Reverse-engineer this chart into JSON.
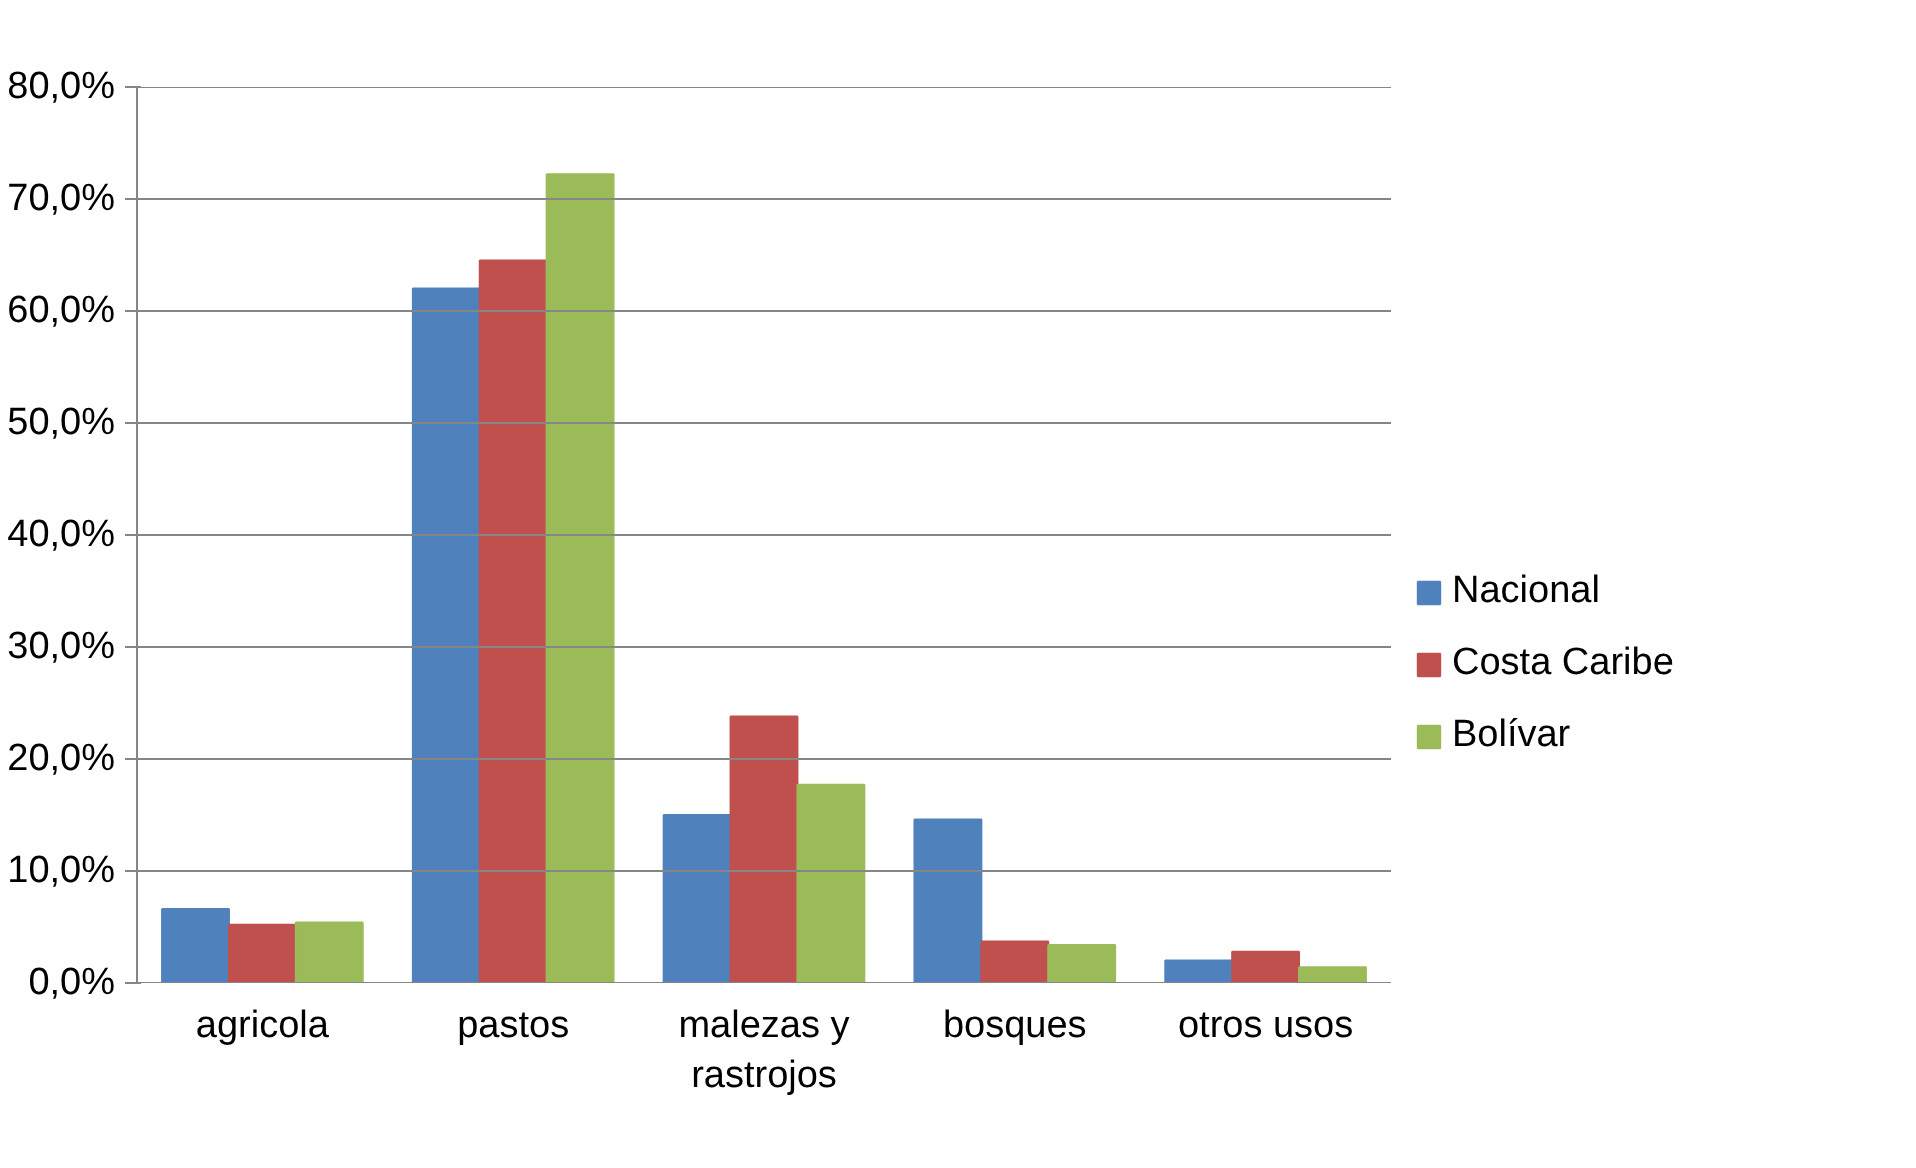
{
  "chart_data": {
    "type": "bar",
    "categories": [
      "agricola",
      "pastos",
      "malezas y\nrastrojos",
      "bosques",
      "otros usos"
    ],
    "series": [
      {
        "name": "Nacional",
        "color": "#4f81bd",
        "values": [
          6.6,
          62.0,
          15.0,
          14.6,
          2.0
        ]
      },
      {
        "name": "Costa Caribe",
        "color": "#c0504d",
        "values": [
          5.2,
          64.5,
          23.8,
          3.7,
          2.8
        ]
      },
      {
        "name": "Bolívar",
        "color": "#9bbb59",
        "values": [
          5.4,
          72.2,
          17.7,
          3.4,
          1.4
        ]
      }
    ],
    "ylim": [
      0,
      80
    ],
    "yticks": [
      {
        "value": 0,
        "label": "0,0%"
      },
      {
        "value": 10,
        "label": "10,0%"
      },
      {
        "value": 20,
        "label": "20,0%"
      },
      {
        "value": 30,
        "label": "30,0%"
      },
      {
        "value": 40,
        "label": "40,0%"
      },
      {
        "value": 50,
        "label": "50,0%"
      },
      {
        "value": 60,
        "label": "60,0%"
      },
      {
        "value": 70,
        "label": "70,0%"
      },
      {
        "value": 80,
        "label": "80,0%"
      }
    ],
    "grid": "y",
    "legend": "right"
  }
}
